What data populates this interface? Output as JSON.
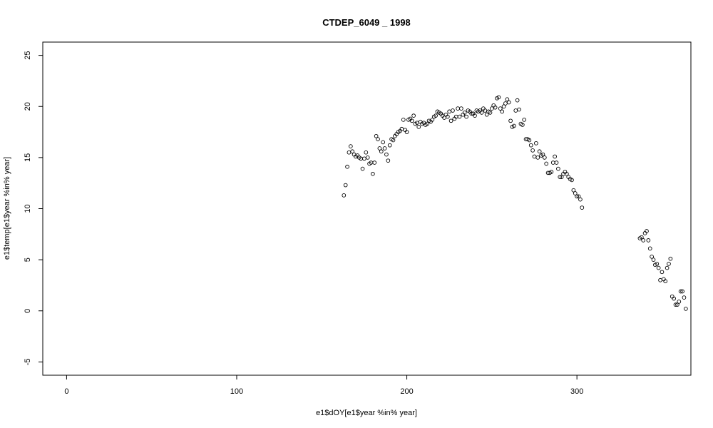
{
  "chart_data": {
    "type": "scatter",
    "title": "CTDEP_6049 _ 1998",
    "xlabel": "e1$dOY[e1$year %in% year]",
    "ylabel": "e1$temp[e1$year %in% year]",
    "xlim": [
      -14,
      367
    ],
    "ylim": [
      -6.3,
      26.3
    ],
    "x_ticks": [
      0,
      100,
      200,
      300
    ],
    "y_ticks": [
      -5,
      0,
      5,
      10,
      15,
      20,
      25
    ],
    "grid": false,
    "points": [
      [
        163,
        11.3
      ],
      [
        164,
        12.3
      ],
      [
        165,
        14.1
      ],
      [
        166,
        15.5
      ],
      [
        167,
        16.1
      ],
      [
        168,
        15.6
      ],
      [
        169,
        15.3
      ],
      [
        170,
        15.1
      ],
      [
        171,
        15.2
      ],
      [
        172,
        15.0
      ],
      [
        173,
        14.9
      ],
      [
        174,
        13.9
      ],
      [
        175,
        14.9
      ],
      [
        176,
        15.5
      ],
      [
        177,
        15.0
      ],
      [
        178,
        14.4
      ],
      [
        179,
        14.5
      ],
      [
        180,
        13.4
      ],
      [
        181,
        14.5
      ],
      [
        182,
        17.1
      ],
      [
        183,
        16.8
      ],
      [
        184,
        15.9
      ],
      [
        185,
        15.6
      ],
      [
        186,
        16.5
      ],
      [
        187,
        15.9
      ],
      [
        188,
        15.3
      ],
      [
        189,
        14.7
      ],
      [
        190,
        16.2
      ],
      [
        191,
        16.8
      ],
      [
        192,
        16.7
      ],
      [
        193,
        17.1
      ],
      [
        194,
        17.3
      ],
      [
        195,
        17.5
      ],
      [
        196,
        17.6
      ],
      [
        197,
        17.8
      ],
      [
        198,
        18.7
      ],
      [
        199,
        17.7
      ],
      [
        200,
        17.5
      ],
      [
        201,
        18.7
      ],
      [
        202,
        18.8
      ],
      [
        203,
        18.6
      ],
      [
        204,
        19.1
      ],
      [
        205,
        18.3
      ],
      [
        206,
        18.4
      ],
      [
        207,
        18.0
      ],
      [
        208,
        18.5
      ],
      [
        209,
        18.3
      ],
      [
        210,
        18.4
      ],
      [
        211,
        18.2
      ],
      [
        212,
        18.3
      ],
      [
        213,
        18.6
      ],
      [
        214,
        18.5
      ],
      [
        215,
        18.7
      ],
      [
        216,
        19.0
      ],
      [
        217,
        19.1
      ],
      [
        218,
        19.5
      ],
      [
        219,
        19.4
      ],
      [
        220,
        19.3
      ],
      [
        221,
        19.1
      ],
      [
        222,
        18.9
      ],
      [
        223,
        19.2
      ],
      [
        224,
        19.0
      ],
      [
        225,
        19.5
      ],
      [
        226,
        18.6
      ],
      [
        227,
        19.6
      ],
      [
        228,
        18.8
      ],
      [
        229,
        19.0
      ],
      [
        230,
        19.8
      ],
      [
        231,
        19.0
      ],
      [
        232,
        19.8
      ],
      [
        233,
        19.2
      ],
      [
        234,
        19.4
      ],
      [
        235,
        19.0
      ],
      [
        236,
        19.6
      ],
      [
        237,
        19.5
      ],
      [
        238,
        19.3
      ],
      [
        239,
        19.3
      ],
      [
        240,
        19.1
      ],
      [
        241,
        19.6
      ],
      [
        242,
        19.5
      ],
      [
        243,
        19.6
      ],
      [
        244,
        19.4
      ],
      [
        245,
        19.8
      ],
      [
        246,
        19.6
      ],
      [
        247,
        19.2
      ],
      [
        248,
        19.5
      ],
      [
        249,
        19.4
      ],
      [
        250,
        19.8
      ],
      [
        251,
        20.1
      ],
      [
        252,
        19.9
      ],
      [
        253,
        20.8
      ],
      [
        254,
        20.9
      ],
      [
        255,
        19.8
      ],
      [
        256,
        19.5
      ],
      [
        257,
        20.0
      ],
      [
        258,
        20.3
      ],
      [
        259,
        20.7
      ],
      [
        260,
        20.4
      ],
      [
        261,
        18.6
      ],
      [
        262,
        18.0
      ],
      [
        263,
        18.1
      ],
      [
        264,
        19.6
      ],
      [
        265,
        20.6
      ],
      [
        266,
        19.7
      ],
      [
        267,
        18.3
      ],
      [
        268,
        18.2
      ],
      [
        269,
        18.7
      ],
      [
        270,
        16.8
      ],
      [
        271,
        16.8
      ],
      [
        272,
        16.7
      ],
      [
        273,
        16.2
      ],
      [
        274,
        15.7
      ],
      [
        275,
        15.1
      ],
      [
        276,
        16.4
      ],
      [
        277,
        15.0
      ],
      [
        278,
        15.6
      ],
      [
        279,
        15.2
      ],
      [
        280,
        15.3
      ],
      [
        281,
        15.0
      ],
      [
        282,
        14.4
      ],
      [
        283,
        13.5
      ],
      [
        284,
        13.5
      ],
      [
        285,
        13.6
      ],
      [
        286,
        14.5
      ],
      [
        287,
        15.1
      ],
      [
        288,
        14.5
      ],
      [
        289,
        13.9
      ],
      [
        290,
        13.1
      ],
      [
        291,
        13.1
      ],
      [
        292,
        13.4
      ],
      [
        293,
        13.6
      ],
      [
        294,
        13.4
      ],
      [
        295,
        13.1
      ],
      [
        296,
        12.9
      ],
      [
        297,
        12.8
      ],
      [
        298,
        11.8
      ],
      [
        299,
        11.5
      ],
      [
        300,
        11.2
      ],
      [
        301,
        11.2
      ],
      [
        302,
        10.9
      ],
      [
        303,
        10.1
      ],
      [
        337,
        7.1
      ],
      [
        338,
        7.2
      ],
      [
        339,
        6.9
      ],
      [
        340,
        7.6
      ],
      [
        341,
        7.8
      ],
      [
        342,
        6.9
      ],
      [
        343,
        6.1
      ],
      [
        344,
        5.3
      ],
      [
        345,
        5.0
      ],
      [
        346,
        4.5
      ],
      [
        347,
        4.6
      ],
      [
        348,
        4.2
      ],
      [
        349,
        3.0
      ],
      [
        350,
        3.8
      ],
      [
        351,
        3.1
      ],
      [
        352,
        2.9
      ],
      [
        353,
        4.2
      ],
      [
        354,
        4.6
      ],
      [
        355,
        5.1
      ],
      [
        356,
        1.4
      ],
      [
        357,
        1.2
      ],
      [
        358,
        0.6
      ],
      [
        359,
        0.6
      ],
      [
        360,
        0.9
      ],
      [
        361,
        1.9
      ],
      [
        362,
        1.9
      ],
      [
        363,
        1.3
      ],
      [
        364,
        0.2
      ]
    ]
  }
}
